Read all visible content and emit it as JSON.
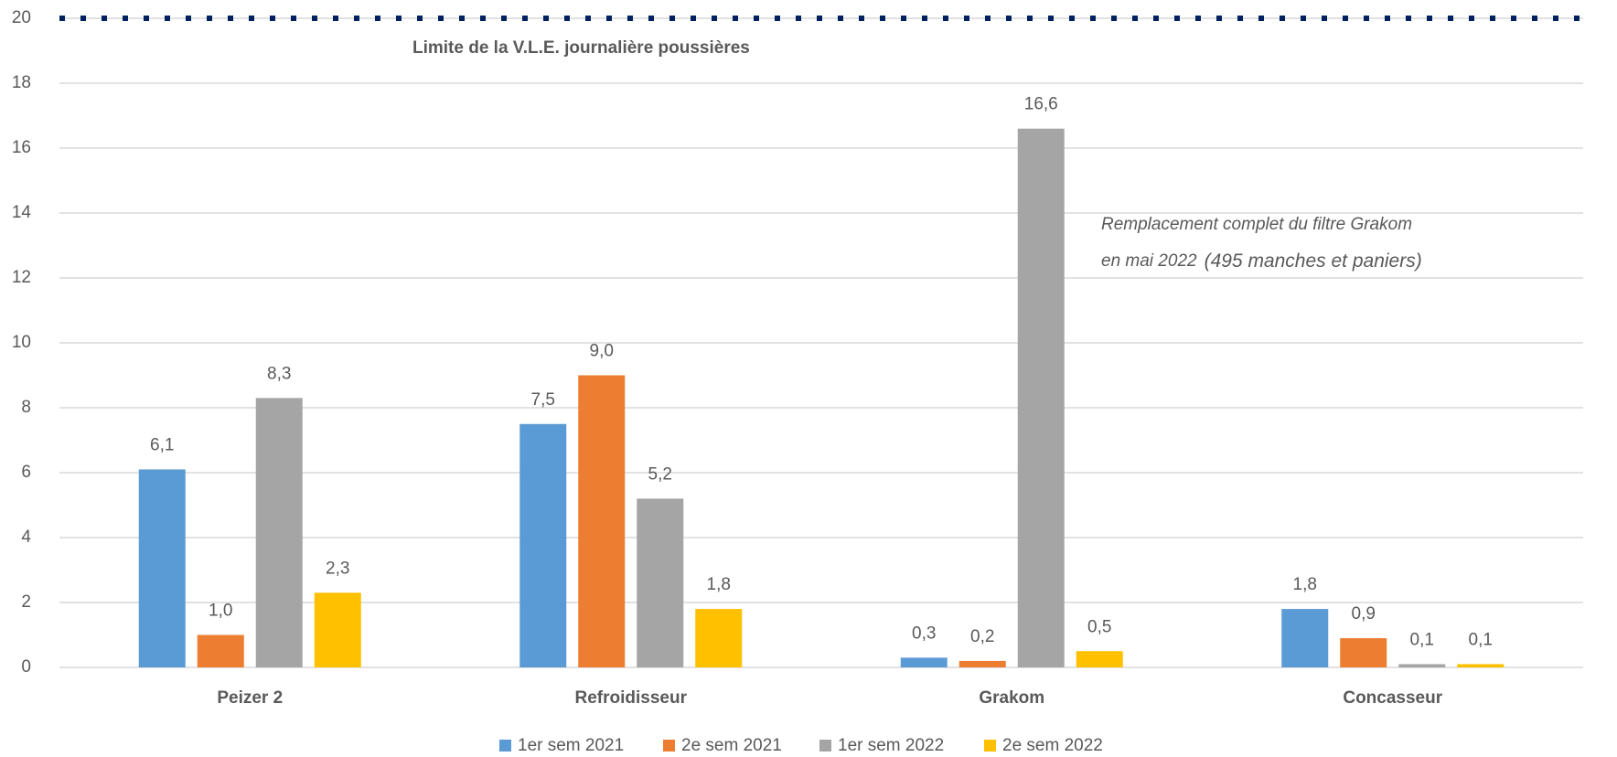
{
  "chart_data": {
    "type": "bar",
    "categories": [
      "Peizer 2",
      "Refroidisseur",
      "Grakom",
      "Concasseur"
    ],
    "series": [
      {
        "name": "1er sem 2021",
        "color": "#5b9bd5",
        "values": [
          6.1,
          7.5,
          0.3,
          1.8
        ],
        "value_labels": [
          "6,1",
          "7,5",
          "0,3",
          "1,8"
        ]
      },
      {
        "name": "2e sem 2021",
        "color": "#ed7d31",
        "values": [
          1.0,
          9.0,
          0.2,
          0.9
        ],
        "value_labels": [
          "1,0",
          "9,0",
          "0,2",
          "0,9"
        ]
      },
      {
        "name": "1er sem 2022",
        "color": "#a5a5a5",
        "values": [
          8.3,
          5.2,
          16.6,
          0.1
        ],
        "value_labels": [
          "8,3",
          "5,2",
          "16,6",
          "0,1"
        ]
      },
      {
        "name": "2e sem 2022",
        "color": "#ffc000",
        "values": [
          2.3,
          1.8,
          0.5,
          0.1
        ],
        "value_labels": [
          "2,3",
          "1,8",
          "0,5",
          "0,1"
        ]
      }
    ],
    "ylim": [
      0,
      20
    ],
    "yticks": [
      0,
      2,
      4,
      6,
      8,
      10,
      12,
      14,
      16,
      18,
      20
    ],
    "grid": true,
    "reference_line": {
      "value": 20,
      "label": "Limite de la V.L.E. journalière poussières",
      "color": "#002060"
    },
    "annotations": [
      "Remplacement complet du filtre Grakom",
      "en mai 2022",
      "(495 manches et paniers)"
    ],
    "legend": "bottom"
  }
}
